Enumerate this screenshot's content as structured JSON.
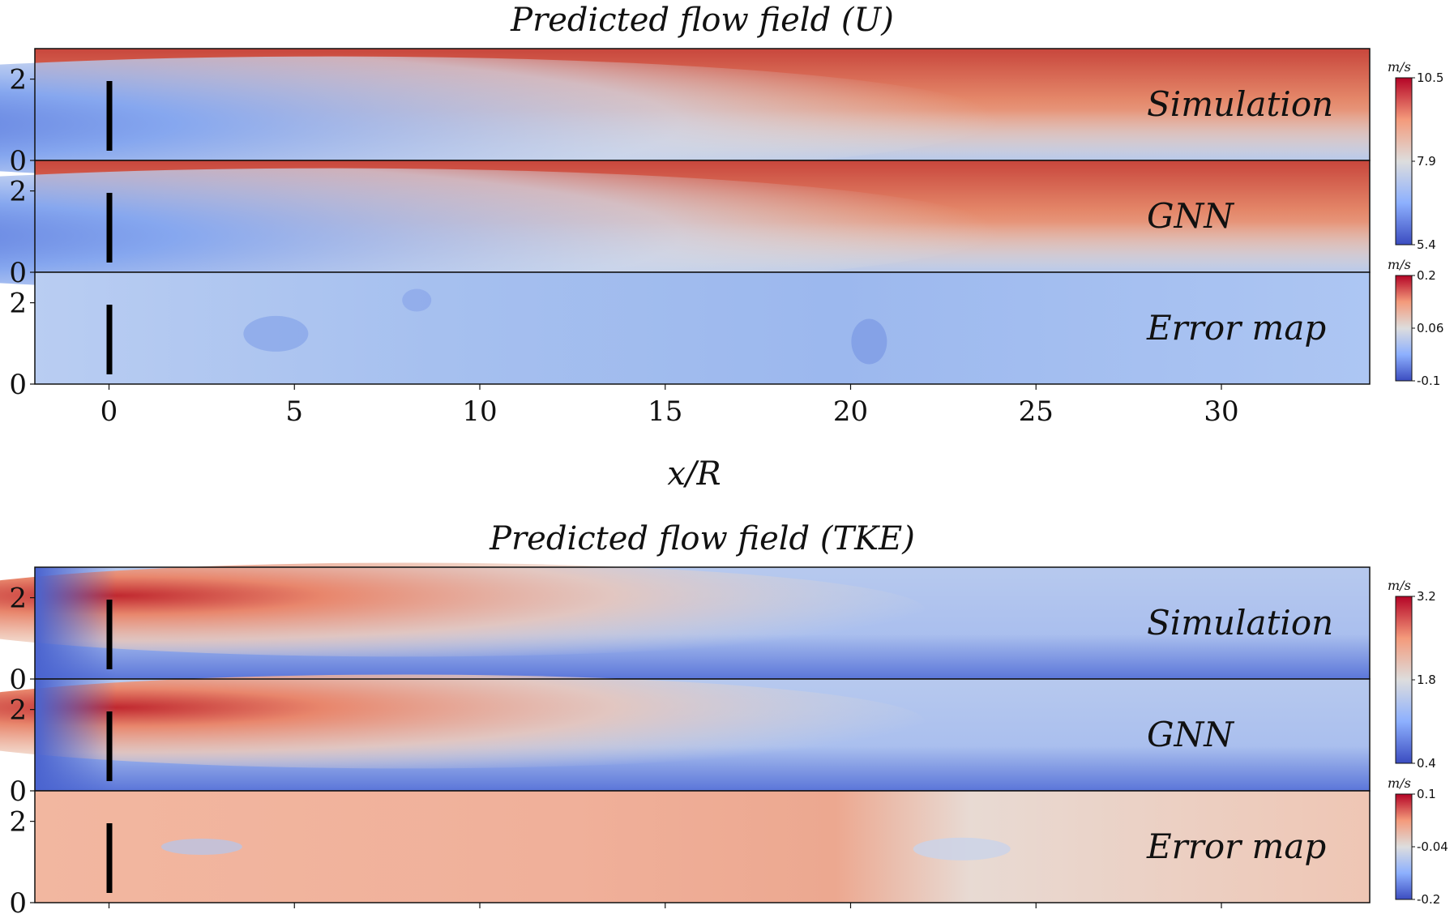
{
  "chart_data": [
    {
      "type": "heatmap",
      "title": "Predicted flow field (U)",
      "xlabel": "x/R",
      "xlim": [
        -2,
        34
      ],
      "x_ticks": [
        "0",
        "5",
        "10",
        "15",
        "20",
        "25",
        "30"
      ],
      "x_tick_values": [
        0,
        5,
        10,
        15,
        20,
        25,
        30
      ],
      "rows": [
        {
          "label": "Simulation",
          "y_ticks": [
            "0",
            "2"
          ],
          "colorbar": {
            "unit": "m/s",
            "ticks": [
              "10.5",
              "7.9",
              "5.4"
            ],
            "vmin": 5.4,
            "vmax": 10.5
          }
        },
        {
          "label": "GNN",
          "y_ticks": [
            "0",
            "2"
          ]
        },
        {
          "label": "Error map",
          "y_ticks": [
            "0",
            "2"
          ],
          "colorbar": {
            "unit": "m/s",
            "ticks": [
              "0.2",
              "0.06",
              "-0.1"
            ],
            "vmin": -0.1,
            "vmax": 0.2
          }
        }
      ]
    },
    {
      "type": "heatmap",
      "title": "Predicted flow field (TKE)",
      "xlabel": "",
      "xlim": [
        -2,
        34
      ],
      "x_ticks": [],
      "x_tick_values": [
        0,
        5,
        10,
        15,
        20,
        25,
        30
      ],
      "rows": [
        {
          "label": "Simulation",
          "y_ticks": [
            "0",
            "2"
          ],
          "colorbar": {
            "unit": "m/s",
            "ticks": [
              "3.2",
              "1.8",
              "0.4"
            ],
            "vmin": 0.4,
            "vmax": 3.2
          }
        },
        {
          "label": "GNN",
          "y_ticks": [
            "0",
            "2"
          ]
        },
        {
          "label": "Error map",
          "y_ticks": [
            "0",
            "2"
          ],
          "colorbar": {
            "unit": "m/s",
            "ticks": [
              "0.1",
              "-0.04",
              "-0.2"
            ],
            "vmin": -0.2,
            "vmax": 0.1
          }
        }
      ]
    }
  ]
}
